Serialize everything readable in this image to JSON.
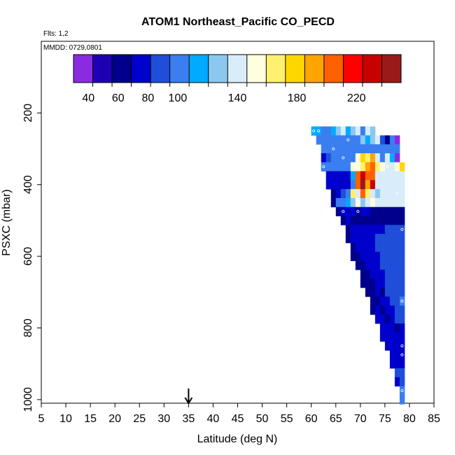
{
  "chart_data": {
    "type": "heatmap",
    "title": "ATOM1 Northeast_Pacific CO_PECD",
    "flights_label": "Flts: 1,2",
    "mmdd_label": "MMDD: 0729,0801",
    "xlabel": "Latitude (deg N)",
    "ylabel": "PSXC (mbar)",
    "xlim": [
      5,
      85
    ],
    "ylim": [
      1010,
      0
    ],
    "x_ticks": [
      "5",
      "10",
      "15",
      "20",
      "25",
      "30",
      "35",
      "40",
      "45",
      "50",
      "55",
      "60",
      "65",
      "70",
      "75",
      "80",
      "85"
    ],
    "y_ticks": [
      "200",
      "400",
      "600",
      "800",
      "1000"
    ],
    "arrow_marker_latitude": 35,
    "colorbar": {
      "range": [
        30,
        250
      ],
      "tick_labels": [
        "40",
        "60",
        "80",
        "100",
        "140",
        "180",
        "220"
      ],
      "colors": [
        "#8a2be2",
        "#1e00b4",
        "#00008c",
        "#0000cd",
        "#1f4fd8",
        "#3a7ef0",
        "#00aaff",
        "#8ac8f0",
        "#d8ecfa",
        "#ffffe0",
        "#fff070",
        "#ffd700",
        "#ffa500",
        "#ff6000",
        "#ff0000",
        "#c80000",
        "#9a1a1a"
      ]
    },
    "lat_step": 1,
    "pressure_step": 25,
    "cells": [
      [
        60,
        250,
        120
      ],
      [
        61,
        250,
        110
      ],
      [
        62,
        250,
        95
      ],
      [
        63,
        250,
        100
      ],
      [
        64,
        250,
        115
      ],
      [
        65,
        250,
        130
      ],
      [
        66,
        250,
        140
      ],
      [
        67,
        250,
        115
      ],
      [
        68,
        250,
        125
      ],
      [
        69,
        250,
        135
      ],
      [
        70,
        250,
        105
      ],
      [
        71,
        250,
        140
      ],
      [
        72,
        250,
        130
      ],
      [
        61,
        275,
        100
      ],
      [
        62,
        275,
        105
      ],
      [
        63,
        275,
        100
      ],
      [
        64,
        275,
        100
      ],
      [
        65,
        275,
        100
      ],
      [
        66,
        275,
        105
      ],
      [
        67,
        275,
        100
      ],
      [
        68,
        275,
        100
      ],
      [
        69,
        275,
        105
      ],
      [
        70,
        275,
        125
      ],
      [
        71,
        275,
        120
      ],
      [
        72,
        275,
        130
      ],
      [
        73,
        275,
        140
      ],
      [
        74,
        275,
        85
      ],
      [
        75,
        275,
        60
      ],
      [
        76,
        275,
        100
      ],
      [
        77,
        275,
        30
      ],
      [
        62,
        300,
        95
      ],
      [
        63,
        300,
        95
      ],
      [
        64,
        300,
        95
      ],
      [
        65,
        300,
        95
      ],
      [
        66,
        300,
        95
      ],
      [
        67,
        300,
        95
      ],
      [
        68,
        300,
        95
      ],
      [
        69,
        300,
        95
      ],
      [
        70,
        300,
        95
      ],
      [
        71,
        300,
        95
      ],
      [
        72,
        300,
        95
      ],
      [
        73,
        300,
        95
      ],
      [
        74,
        300,
        95
      ],
      [
        75,
        300,
        95
      ],
      [
        76,
        300,
        95
      ],
      [
        77,
        300,
        95
      ],
      [
        62,
        325,
        80
      ],
      [
        63,
        325,
        85
      ],
      [
        64,
        325,
        95
      ],
      [
        65,
        325,
        95
      ],
      [
        66,
        325,
        100
      ],
      [
        67,
        325,
        100
      ],
      [
        68,
        325,
        95
      ],
      [
        69,
        325,
        150
      ],
      [
        70,
        325,
        175
      ],
      [
        71,
        325,
        165
      ],
      [
        72,
        325,
        190
      ],
      [
        73,
        325,
        145
      ],
      [
        74,
        325,
        100
      ],
      [
        75,
        325,
        145
      ],
      [
        76,
        325,
        110
      ],
      [
        77,
        325,
        40
      ],
      [
        62,
        350,
        95
      ],
      [
        63,
        350,
        95
      ],
      [
        64,
        350,
        95
      ],
      [
        65,
        350,
        95
      ],
      [
        66,
        350,
        95
      ],
      [
        67,
        350,
        95
      ],
      [
        68,
        350,
        155
      ],
      [
        69,
        350,
        150
      ],
      [
        70,
        350,
        170
      ],
      [
        71,
        350,
        190
      ],
      [
        72,
        350,
        200
      ],
      [
        73,
        350,
        160
      ],
      [
        74,
        350,
        150
      ],
      [
        75,
        350,
        140
      ],
      [
        76,
        350,
        145
      ],
      [
        77,
        350,
        150
      ],
      [
        78,
        350,
        180
      ],
      [
        63,
        375,
        80
      ],
      [
        64,
        375,
        80
      ],
      [
        65,
        375,
        80
      ],
      [
        66,
        375,
        80
      ],
      [
        67,
        375,
        80
      ],
      [
        68,
        375,
        115
      ],
      [
        69,
        375,
        200
      ],
      [
        70,
        375,
        230
      ],
      [
        71,
        375,
        210
      ],
      [
        72,
        375,
        200
      ],
      [
        73,
        375,
        140
      ],
      [
        74,
        375,
        140
      ],
      [
        75,
        375,
        140
      ],
      [
        76,
        375,
        140
      ],
      [
        77,
        375,
        140
      ],
      [
        78,
        375,
        140
      ],
      [
        63,
        400,
        80
      ],
      [
        64,
        400,
        80
      ],
      [
        65,
        400,
        80
      ],
      [
        66,
        400,
        80
      ],
      [
        67,
        400,
        80
      ],
      [
        68,
        400,
        100
      ],
      [
        69,
        400,
        200
      ],
      [
        70,
        400,
        245
      ],
      [
        71,
        400,
        190
      ],
      [
        72,
        400,
        225
      ],
      [
        73,
        400,
        140
      ],
      [
        74,
        400,
        140
      ],
      [
        75,
        400,
        140
      ],
      [
        76,
        400,
        140
      ],
      [
        77,
        400,
        140
      ],
      [
        78,
        400,
        140
      ],
      [
        64,
        425,
        60
      ],
      [
        65,
        425,
        80
      ],
      [
        66,
        425,
        85
      ],
      [
        67,
        425,
        95
      ],
      [
        68,
        425,
        160
      ],
      [
        69,
        425,
        145
      ],
      [
        70,
        425,
        210
      ],
      [
        71,
        425,
        160
      ],
      [
        72,
        425,
        140
      ],
      [
        73,
        425,
        130
      ],
      [
        74,
        425,
        140
      ],
      [
        75,
        425,
        140
      ],
      [
        76,
        425,
        140
      ],
      [
        77,
        425,
        140
      ],
      [
        78,
        425,
        140
      ],
      [
        64,
        450,
        60
      ],
      [
        65,
        450,
        100
      ],
      [
        66,
        450,
        100
      ],
      [
        67,
        450,
        120
      ],
      [
        68,
        450,
        130
      ],
      [
        69,
        450,
        150
      ],
      [
        70,
        450,
        125
      ],
      [
        71,
        450,
        140
      ],
      [
        72,
        450,
        150
      ],
      [
        73,
        450,
        140
      ],
      [
        74,
        450,
        140
      ],
      [
        75,
        450,
        140
      ],
      [
        76,
        450,
        140
      ],
      [
        77,
        450,
        140
      ],
      [
        78,
        450,
        140
      ],
      [
        65,
        475,
        60
      ],
      [
        66,
        475,
        80
      ],
      [
        67,
        475,
        70
      ],
      [
        68,
        475,
        80
      ],
      [
        69,
        475,
        60
      ],
      [
        70,
        475,
        80
      ],
      [
        71,
        475,
        80
      ],
      [
        72,
        475,
        65
      ],
      [
        73,
        475,
        60
      ],
      [
        74,
        475,
        65
      ],
      [
        75,
        475,
        60
      ],
      [
        76,
        475,
        60
      ],
      [
        77,
        475,
        60
      ],
      [
        78,
        475,
        60
      ],
      [
        66,
        500,
        60
      ],
      [
        67,
        500,
        80
      ],
      [
        68,
        500,
        60
      ],
      [
        69,
        500,
        60
      ],
      [
        70,
        500,
        60
      ],
      [
        71,
        500,
        60
      ],
      [
        72,
        500,
        60
      ],
      [
        73,
        500,
        60
      ],
      [
        74,
        500,
        60
      ],
      [
        75,
        500,
        60
      ],
      [
        76,
        500,
        60
      ],
      [
        77,
        500,
        60
      ],
      [
        78,
        500,
        60
      ],
      [
        67,
        525,
        60
      ],
      [
        68,
        525,
        70
      ],
      [
        69,
        525,
        80
      ],
      [
        70,
        525,
        75
      ],
      [
        71,
        525,
        80
      ],
      [
        72,
        525,
        80
      ],
      [
        73,
        525,
        80
      ],
      [
        74,
        525,
        80
      ],
      [
        75,
        525,
        85
      ],
      [
        76,
        525,
        85
      ],
      [
        77,
        525,
        85
      ],
      [
        78,
        525,
        85
      ],
      [
        67,
        550,
        60
      ],
      [
        68,
        550,
        70
      ],
      [
        69,
        550,
        75
      ],
      [
        70,
        550,
        80
      ],
      [
        71,
        550,
        80
      ],
      [
        72,
        550,
        80
      ],
      [
        73,
        550,
        85
      ],
      [
        74,
        550,
        85
      ],
      [
        75,
        550,
        85
      ],
      [
        76,
        550,
        85
      ],
      [
        77,
        550,
        85
      ],
      [
        78,
        550,
        85
      ],
      [
        68,
        575,
        60
      ],
      [
        69,
        575,
        70
      ],
      [
        70,
        575,
        80
      ],
      [
        71,
        575,
        80
      ],
      [
        72,
        575,
        80
      ],
      [
        73,
        575,
        85
      ],
      [
        74,
        575,
        85
      ],
      [
        75,
        575,
        85
      ],
      [
        76,
        575,
        85
      ],
      [
        77,
        575,
        85
      ],
      [
        78,
        575,
        85
      ],
      [
        68,
        600,
        60
      ],
      [
        69,
        600,
        60
      ],
      [
        70,
        600,
        75
      ],
      [
        71,
        600,
        80
      ],
      [
        72,
        600,
        80
      ],
      [
        73,
        600,
        80
      ],
      [
        74,
        600,
        85
      ],
      [
        75,
        600,
        85
      ],
      [
        76,
        600,
        85
      ],
      [
        77,
        600,
        85
      ],
      [
        78,
        600,
        85
      ],
      [
        69,
        625,
        60
      ],
      [
        70,
        625,
        60
      ],
      [
        71,
        625,
        80
      ],
      [
        72,
        625,
        80
      ],
      [
        73,
        625,
        80
      ],
      [
        74,
        625,
        85
      ],
      [
        75,
        625,
        85
      ],
      [
        76,
        625,
        85
      ],
      [
        77,
        625,
        85
      ],
      [
        78,
        625,
        85
      ],
      [
        70,
        650,
        60
      ],
      [
        71,
        650,
        60
      ],
      [
        72,
        650,
        75
      ],
      [
        73,
        650,
        80
      ],
      [
        74,
        650,
        80
      ],
      [
        75,
        650,
        85
      ],
      [
        76,
        650,
        85
      ],
      [
        77,
        650,
        85
      ],
      [
        78,
        650,
        85
      ],
      [
        70,
        675,
        60
      ],
      [
        71,
        675,
        60
      ],
      [
        72,
        675,
        60
      ],
      [
        73,
        675,
        80
      ],
      [
        74,
        675,
        80
      ],
      [
        75,
        675,
        85
      ],
      [
        76,
        675,
        85
      ],
      [
        77,
        675,
        85
      ],
      [
        78,
        675,
        85
      ],
      [
        71,
        700,
        60
      ],
      [
        72,
        700,
        60
      ],
      [
        73,
        700,
        75
      ],
      [
        74,
        700,
        60
      ],
      [
        75,
        700,
        85
      ],
      [
        76,
        700,
        85
      ],
      [
        77,
        700,
        85
      ],
      [
        78,
        700,
        85
      ],
      [
        72,
        725,
        60
      ],
      [
        73,
        725,
        60
      ],
      [
        74,
        725,
        75
      ],
      [
        75,
        725,
        80
      ],
      [
        76,
        725,
        85
      ],
      [
        77,
        725,
        85
      ],
      [
        78,
        725,
        100
      ],
      [
        72,
        750,
        60
      ],
      [
        73,
        750,
        75
      ],
      [
        74,
        750,
        60
      ],
      [
        75,
        750,
        80
      ],
      [
        76,
        750,
        80
      ],
      [
        77,
        750,
        85
      ],
      [
        78,
        750,
        85
      ],
      [
        73,
        775,
        80
      ],
      [
        74,
        775,
        80
      ],
      [
        75,
        775,
        60
      ],
      [
        76,
        775,
        80
      ],
      [
        77,
        775,
        85
      ],
      [
        78,
        775,
        85
      ],
      [
        74,
        800,
        80
      ],
      [
        75,
        800,
        80
      ],
      [
        76,
        800,
        75
      ],
      [
        77,
        800,
        60
      ],
      [
        78,
        800,
        80
      ],
      [
        74,
        825,
        80
      ],
      [
        75,
        825,
        80
      ],
      [
        76,
        825,
        80
      ],
      [
        77,
        825,
        80
      ],
      [
        78,
        825,
        80
      ],
      [
        75,
        850,
        80
      ],
      [
        76,
        850,
        80
      ],
      [
        77,
        850,
        80
      ],
      [
        78,
        850,
        80
      ],
      [
        76,
        875,
        80
      ],
      [
        77,
        875,
        80
      ],
      [
        78,
        875,
        80
      ],
      [
        76,
        900,
        80
      ],
      [
        77,
        900,
        80
      ],
      [
        78,
        900,
        80
      ],
      [
        77,
        925,
        85
      ],
      [
        78,
        925,
        85
      ],
      [
        77,
        950,
        80
      ],
      [
        78,
        950,
        85
      ],
      [
        78,
        975,
        100
      ],
      [
        78,
        1000,
        100
      ]
    ],
    "markers": [
      [
        60,
        250
      ],
      [
        61,
        250
      ],
      [
        67,
        275
      ],
      [
        64,
        300
      ],
      [
        66,
        325
      ],
      [
        62,
        350
      ],
      [
        78,
        325
      ],
      [
        75,
        350
      ],
      [
        77,
        425
      ],
      [
        66,
        475
      ],
      [
        69,
        475
      ],
      [
        78,
        525
      ],
      [
        78,
        725
      ],
      [
        78,
        850
      ],
      [
        78,
        875
      ],
      [
        78,
        975
      ]
    ]
  }
}
